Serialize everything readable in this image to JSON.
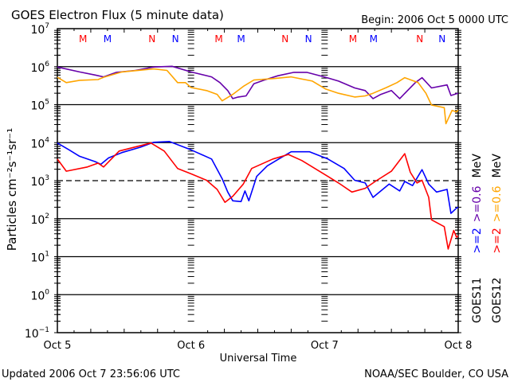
{
  "chart_data": {
    "type": "line",
    "title": "GOES Electron Flux (5 minute data)",
    "begin_label": "Begin: 2006 Oct 5 0000 UTC",
    "xlabel": "Universal Time",
    "ylabel": "Particles cm⁻²s⁻¹sr⁻¹",
    "x_unit": "hours since 2006 Oct 5 0000 UTC",
    "xlim": [
      0,
      72
    ],
    "x_ticks": [
      {
        "hour": 0,
        "label": "Oct 5"
      },
      {
        "hour": 24,
        "label": "Oct 6"
      },
      {
        "hour": 48,
        "label": "Oct 7"
      },
      {
        "hour": 72,
        "label": "Oct 8"
      }
    ],
    "y_scale": "log",
    "ylim_log10": [
      -1,
      7
    ],
    "y_ticks": [
      {
        "base": "10",
        "exp": "7"
      },
      {
        "base": "10",
        "exp": "6"
      },
      {
        "base": "10",
        "exp": "5"
      },
      {
        "base": "10",
        "exp": "4"
      },
      {
        "base": "10",
        "exp": "3"
      },
      {
        "base": "10",
        "exp": "2"
      },
      {
        "base": "10",
        "exp": "1"
      },
      {
        "base": "10",
        "exp": "0"
      },
      {
        "base": "10",
        "exp": "−1"
      }
    ],
    "reference_lines_log10": [
      6,
      5,
      4,
      3,
      2,
      1,
      0
    ],
    "dashed_line_log10": 3,
    "markers": [
      {
        "hour": 4.6,
        "label": "M",
        "color": "#ff0000"
      },
      {
        "hour": 9.0,
        "label": "M",
        "color": "#0000ff"
      },
      {
        "hour": 17.0,
        "label": "N",
        "color": "#ff0000"
      },
      {
        "hour": 21.2,
        "label": "N",
        "color": "#0000ff"
      },
      {
        "hour": 29.0,
        "label": "M",
        "color": "#ff0000"
      },
      {
        "hour": 33.0,
        "label": "M",
        "color": "#0000ff"
      },
      {
        "hour": 40.9,
        "label": "N",
        "color": "#ff0000"
      },
      {
        "hour": 45.1,
        "label": "N",
        "color": "#0000ff"
      },
      {
        "hour": 53.1,
        "label": "M",
        "color": "#ff0000"
      },
      {
        "hour": 56.8,
        "label": "M",
        "color": "#0000ff"
      },
      {
        "hour": 65.1,
        "label": "N",
        "color": "#ff0000"
      },
      {
        "hour": 69.1,
        "label": "N",
        "color": "#0000ff"
      }
    ],
    "legend": {
      "placement": "right (rotated)",
      "columns": [
        {
          "satellite": "GOES11",
          "e2": ">=2",
          "e06": ">=0.6",
          "unit": "MeV",
          "e2_color": "#0000ff",
          "e06_color": "#6600aa"
        },
        {
          "satellite": "GOES12",
          "e2": ">=2",
          "e06": ">=0.6",
          "unit": "MeV",
          "e2_color": "#ff0000",
          "e06_color": "#ffa500"
        }
      ]
    },
    "series": [
      {
        "name": "GOES11 >=0.6 MeV",
        "color": "#6600aa",
        "hours": [
          0,
          4,
          6.8,
          8.3,
          10.6,
          14,
          17.3,
          20.6,
          24,
          27.7,
          29.2,
          30.6,
          31.5,
          32.5,
          33.9,
          35.3,
          37.2,
          39.6,
          42.5,
          44.8,
          48.2,
          50.5,
          53.4,
          55.3,
          56.7,
          58.1,
          60,
          61.5,
          62.9,
          64.3,
          65.5,
          67.2,
          70,
          70.7,
          71.7,
          72
        ],
        "log10_flux": [
          5.99,
          5.86,
          5.78,
          5.73,
          5.85,
          5.9,
          5.99,
          6.01,
          5.86,
          5.73,
          5.58,
          5.37,
          5.16,
          5.2,
          5.23,
          5.55,
          5.65,
          5.76,
          5.85,
          5.85,
          5.72,
          5.62,
          5.44,
          5.37,
          5.16,
          5.27,
          5.37,
          5.16,
          5.37,
          5.58,
          5.71,
          5.44,
          5.52,
          5.24,
          5.29,
          5.3
        ]
      },
      {
        "name": "GOES12 >=0.6 MeV",
        "color": "#ffa500",
        "hours": [
          0,
          1.6,
          4,
          7.3,
          8.3,
          11.6,
          17.3,
          19.7,
          21.6,
          23,
          24,
          26.8,
          28.7,
          29.6,
          31.5,
          33.4,
          35.3,
          39.1,
          42,
          45.8,
          48.2,
          50.5,
          53.4,
          55.3,
          56.7,
          59.1,
          61,
          62.4,
          64.8,
          66.2,
          67.2,
          69.5,
          69.8,
          70.9,
          71.7,
          72
        ],
        "log10_flux": [
          5.72,
          5.58,
          5.64,
          5.66,
          5.72,
          5.86,
          5.94,
          5.9,
          5.58,
          5.58,
          5.45,
          5.37,
          5.27,
          5.1,
          5.27,
          5.48,
          5.65,
          5.69,
          5.73,
          5.62,
          5.41,
          5.3,
          5.2,
          5.23,
          5.3,
          5.45,
          5.58,
          5.71,
          5.58,
          5.3,
          4.99,
          4.92,
          4.5,
          4.85,
          4.81,
          4.86
        ]
      },
      {
        "name": "GOES11 >=2 MeV",
        "color": "#0000ff",
        "hours": [
          0,
          2.1,
          4,
          6.8,
          7.8,
          9.2,
          11.6,
          14.9,
          17.3,
          20.1,
          24,
          27.7,
          29.6,
          30.6,
          31.5,
          33,
          33.7,
          34.4,
          35.8,
          37.7,
          40.1,
          42,
          45.3,
          48.6,
          51.5,
          53.4,
          55.3,
          56.7,
          59.6,
          61.5,
          62.4,
          63.8,
          65.5,
          66.7,
          68.1,
          70,
          70.7,
          71.7,
          72
        ],
        "log10_flux": [
          3.99,
          3.81,
          3.64,
          3.5,
          3.43,
          3.6,
          3.74,
          3.88,
          4.01,
          4.03,
          3.81,
          3.57,
          3.05,
          2.7,
          2.47,
          2.45,
          2.73,
          2.47,
          3.11,
          3.39,
          3.6,
          3.76,
          3.76,
          3.57,
          3.32,
          3.01,
          2.94,
          2.56,
          2.91,
          2.73,
          2.98,
          2.87,
          3.29,
          2.91,
          2.7,
          2.77,
          2.14,
          2.28,
          2.3
        ]
      },
      {
        "name": "GOES12 >=2 MeV",
        "color": "#ff0000",
        "hours": [
          0,
          1.6,
          5.4,
          7.3,
          8.3,
          11.1,
          16.8,
          19.2,
          21.6,
          24,
          26.8,
          28.7,
          30.1,
          31.5,
          33.4,
          34.9,
          38.7,
          41.5,
          43.9,
          48.6,
          50.5,
          52.9,
          55.3,
          57.2,
          60,
          62.4,
          63.4,
          64.6,
          65.5,
          66.7,
          67.2,
          69.5,
          70.2,
          71.2,
          71.7,
          72
        ],
        "log10_flux": [
          3.57,
          3.25,
          3.36,
          3.46,
          3.36,
          3.78,
          3.99,
          3.78,
          3.32,
          3.18,
          3.01,
          2.77,
          2.43,
          2.59,
          2.91,
          3.32,
          3.57,
          3.69,
          3.53,
          3.11,
          2.94,
          2.7,
          2.8,
          2.99,
          3.25,
          3.71,
          3.22,
          2.94,
          3.01,
          2.56,
          1.97,
          1.79,
          1.2,
          1.69,
          1.51,
          1.55
        ]
      }
    ]
  },
  "footer": {
    "updated": "Updated 2006 Oct  7 23:56:06 UTC",
    "source": "NOAA/SEC Boulder, CO USA"
  }
}
